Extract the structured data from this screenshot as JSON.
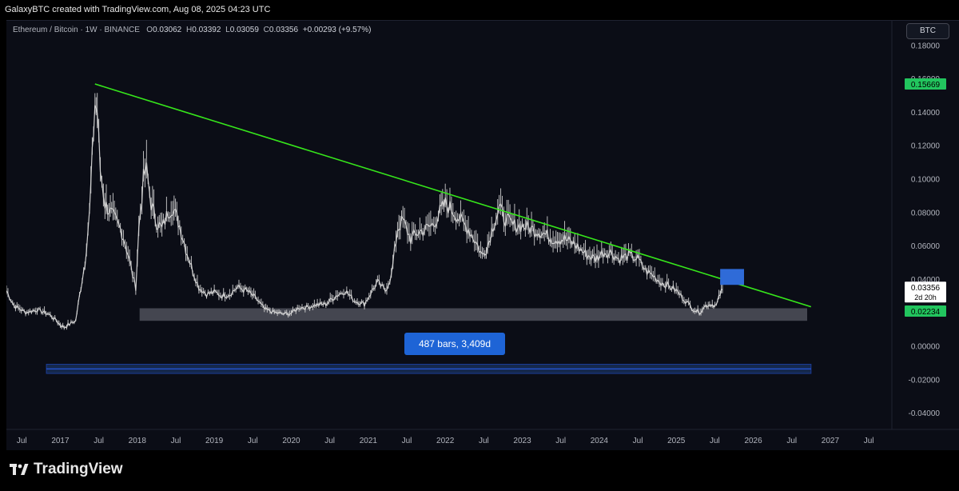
{
  "header": {
    "caption": "GalaxyBTC created with TradingView.com, Aug 08, 2025 04:23 UTC"
  },
  "legend": {
    "symbol": "Ethereum / Bitcoin · 1W · BINANCE",
    "open_label": "O",
    "open": "0.03062",
    "high_label": "H",
    "high": "0.03392",
    "low_label": "L",
    "low": "0.03059",
    "close_label": "C",
    "close": "0.03356",
    "change": "+0.00293 (+9.57%)"
  },
  "currency_button": "BTC",
  "measure_label": "487 bars, 3,409d",
  "price_badges": {
    "green_top": "0.15669",
    "last_price": "0.03356",
    "countdown": "2d 20h",
    "green_bottom": "0.02234"
  },
  "footer": {
    "brand": "TradingView"
  },
  "colors": {
    "background": "#0b0d16",
    "candles": "#d8d8d8",
    "trendline": "#36e61b",
    "support_zone": "#4a4d57",
    "target_box": "#2f6bd8",
    "measure": "#1e64d6",
    "badge_green": "#22c55e"
  },
  "chart_data": {
    "type": "line",
    "title": "Ethereum / Bitcoin · 1W · BINANCE",
    "interval": "1W",
    "x_ticks": [
      "Jul",
      "2017",
      "Jul",
      "2018",
      "Jul",
      "2019",
      "Jul",
      "2020",
      "Jul",
      "2021",
      "Jul",
      "2022",
      "Jul",
      "2023",
      "Jul",
      "2024",
      "Jul",
      "2025",
      "Jul",
      "2026",
      "Jul",
      "2027",
      "Jul"
    ],
    "y_ticks": [
      "0.18000",
      "0.16000",
      "0.14000",
      "0.12000",
      "0.10000",
      "0.08000",
      "0.06000",
      "0.04000",
      "0.02000",
      "0.00000",
      "-0.02000",
      "-0.04000"
    ],
    "ylim": [
      -0.05,
      0.195
    ],
    "xlim": [
      2016.3,
      2027.8
    ],
    "grid": false,
    "series": [
      {
        "values_xy": [
          [
            2016.3,
            0.033
          ],
          [
            2016.4,
            0.024
          ],
          [
            2016.55,
            0.02
          ],
          [
            2016.7,
            0.0215
          ],
          [
            2016.85,
            0.019
          ],
          [
            2016.95,
            0.015
          ],
          [
            2017.0,
            0.0125
          ],
          [
            2017.05,
            0.011
          ],
          [
            2017.1,
            0.0125
          ],
          [
            2017.2,
            0.015
          ],
          [
            2017.25,
            0.03
          ],
          [
            2017.32,
            0.05
          ],
          [
            2017.38,
            0.08
          ],
          [
            2017.45,
            0.145
          ],
          [
            2017.48,
            0.14
          ],
          [
            2017.52,
            0.105
          ],
          [
            2017.58,
            0.085
          ],
          [
            2017.65,
            0.08
          ],
          [
            2017.72,
            0.075
          ],
          [
            2017.8,
            0.068
          ],
          [
            2017.88,
            0.055
          ],
          [
            2017.94,
            0.042
          ],
          [
            2017.98,
            0.035
          ],
          [
            2018.02,
            0.07
          ],
          [
            2018.08,
            0.1
          ],
          [
            2018.12,
            0.105
          ],
          [
            2018.18,
            0.085
          ],
          [
            2018.25,
            0.074
          ],
          [
            2018.32,
            0.07
          ],
          [
            2018.4,
            0.08
          ],
          [
            2018.46,
            0.083
          ],
          [
            2018.55,
            0.072
          ],
          [
            2018.63,
            0.058
          ],
          [
            2018.72,
            0.045
          ],
          [
            2018.8,
            0.035
          ],
          [
            2018.9,
            0.031
          ],
          [
            2019.0,
            0.032
          ],
          [
            2019.1,
            0.03
          ],
          [
            2019.2,
            0.031
          ],
          [
            2019.3,
            0.035
          ],
          [
            2019.42,
            0.033
          ],
          [
            2019.55,
            0.028
          ],
          [
            2019.65,
            0.022
          ],
          [
            2019.78,
            0.02
          ],
          [
            2019.9,
            0.019
          ],
          [
            2020.0,
            0.0195
          ],
          [
            2020.1,
            0.023
          ],
          [
            2020.2,
            0.023
          ],
          [
            2020.32,
            0.0245
          ],
          [
            2020.45,
            0.025
          ],
          [
            2020.58,
            0.03
          ],
          [
            2020.7,
            0.033
          ],
          [
            2020.82,
            0.027
          ],
          [
            2020.95,
            0.025
          ],
          [
            2021.05,
            0.033
          ],
          [
            2021.12,
            0.038
          ],
          [
            2021.22,
            0.033
          ],
          [
            2021.3,
            0.042
          ],
          [
            2021.38,
            0.07
          ],
          [
            2021.45,
            0.075
          ],
          [
            2021.55,
            0.064
          ],
          [
            2021.65,
            0.068
          ],
          [
            2021.75,
            0.07
          ],
          [
            2021.85,
            0.073
          ],
          [
            2021.93,
            0.08
          ],
          [
            2022.0,
            0.085
          ],
          [
            2022.08,
            0.082
          ],
          [
            2022.18,
            0.076
          ],
          [
            2022.3,
            0.07
          ],
          [
            2022.4,
            0.062
          ],
          [
            2022.48,
            0.054
          ],
          [
            2022.55,
            0.06
          ],
          [
            2022.62,
            0.072
          ],
          [
            2022.7,
            0.082
          ],
          [
            2022.78,
            0.076
          ],
          [
            2022.88,
            0.072
          ],
          [
            2023.0,
            0.072
          ],
          [
            2023.12,
            0.07
          ],
          [
            2023.25,
            0.068
          ],
          [
            2023.4,
            0.064
          ],
          [
            2023.55,
            0.064
          ],
          [
            2023.7,
            0.06
          ],
          [
            2023.82,
            0.055
          ],
          [
            2023.95,
            0.052
          ],
          [
            2024.05,
            0.056
          ],
          [
            2024.15,
            0.056
          ],
          [
            2024.25,
            0.052
          ],
          [
            2024.38,
            0.054
          ],
          [
            2024.5,
            0.052
          ],
          [
            2024.6,
            0.045
          ],
          [
            2024.7,
            0.042
          ],
          [
            2024.8,
            0.038
          ],
          [
            2024.9,
            0.036
          ],
          [
            2025.0,
            0.033
          ],
          [
            2025.1,
            0.028
          ],
          [
            2025.22,
            0.022
          ],
          [
            2025.3,
            0.02
          ],
          [
            2025.38,
            0.024
          ],
          [
            2025.45,
            0.025
          ],
          [
            2025.52,
            0.024
          ],
          [
            2025.57,
            0.031
          ],
          [
            2025.6,
            0.0336
          ]
        ]
      }
    ],
    "annotations": {
      "trendline": {
        "from": [
          2017.45,
          0.1567
        ],
        "to": [
          2026.75,
          0.0234
        ]
      },
      "support_zone": {
        "x": [
          2018.03,
          2026.7
        ],
        "y": [
          0.015,
          0.0225
        ]
      },
      "target_box": {
        "x": [
          2025.57,
          2025.88
        ],
        "y": [
          0.0365,
          0.046
        ]
      },
      "date_range": {
        "x": [
          2016.82,
          2026.75
        ],
        "y": [
          -0.011,
          -0.0165
        ],
        "label": "487 bars, 3,409d"
      }
    }
  }
}
